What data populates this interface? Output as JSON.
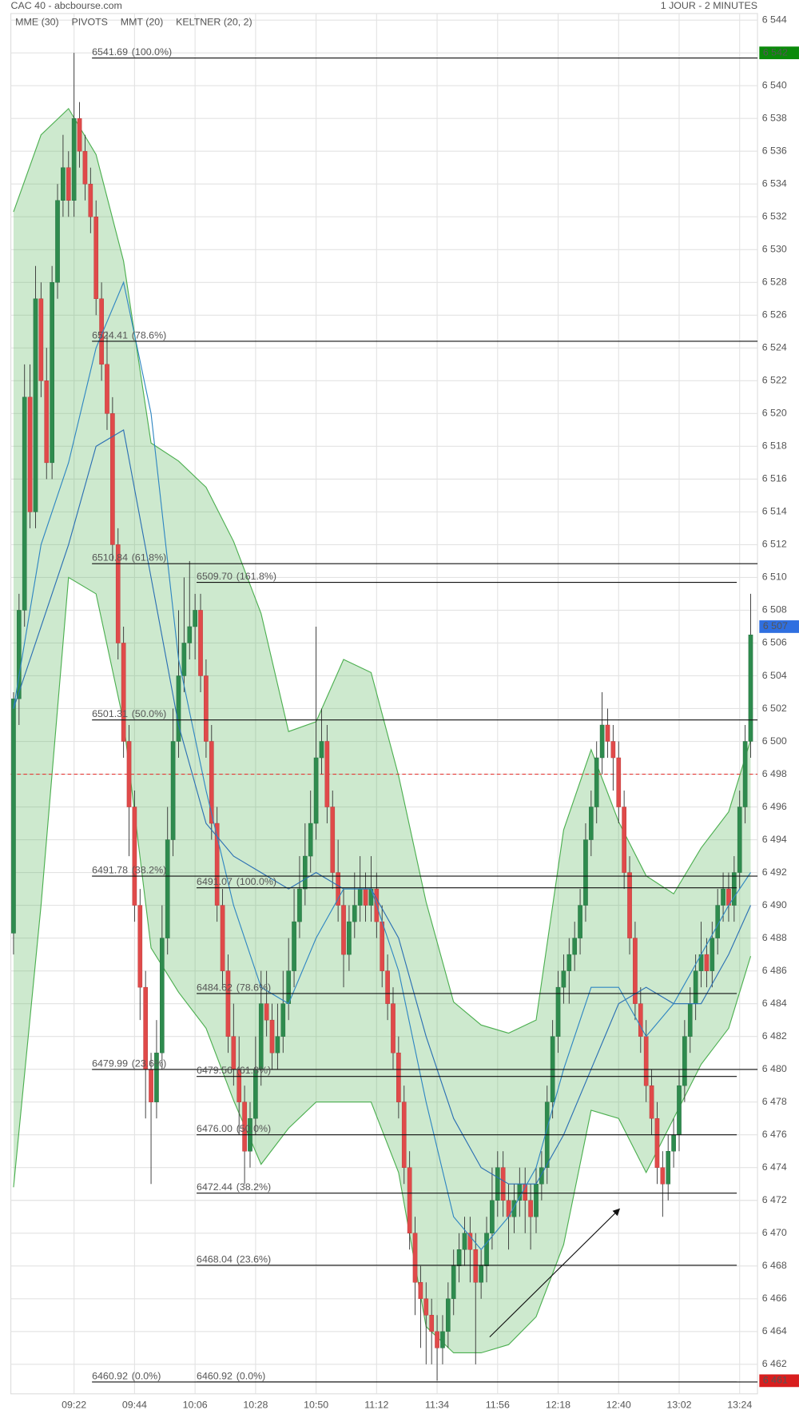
{
  "chart_data": {
    "type": "candlestick",
    "title": "CAC 40 - abcbourse.com",
    "subtitle": "1 JOUR - 2 MINUTES",
    "up_color": "#2e8b4e",
    "down_color": "#e04a4a",
    "grid": true,
    "ylim": [
      6460.2,
      6544.4
    ],
    "yticks": [
      {
        "value": 6462,
        "label": "6 462"
      },
      {
        "value": 6464,
        "label": "6 464"
      },
      {
        "value": 6466,
        "label": "6 466"
      },
      {
        "value": 6468,
        "label": "6 468"
      },
      {
        "value": 6470,
        "label": "6 470"
      },
      {
        "value": 6472,
        "label": "6 472"
      },
      {
        "value": 6474,
        "label": "6 474"
      },
      {
        "value": 6476,
        "label": "6 476"
      },
      {
        "value": 6478,
        "label": "6 478"
      },
      {
        "value": 6480,
        "label": "6 480"
      },
      {
        "value": 6482,
        "label": "6 482"
      },
      {
        "value": 6484,
        "label": "6 484"
      },
      {
        "value": 6486,
        "label": "6 486"
      },
      {
        "value": 6488,
        "label": "6 488"
      },
      {
        "value": 6490,
        "label": "6 490"
      },
      {
        "value": 6492,
        "label": "6 492"
      },
      {
        "value": 6494,
        "label": "6 494"
      },
      {
        "value": 6496,
        "label": "6 496"
      },
      {
        "value": 6498,
        "label": "6 498"
      },
      {
        "value": 6500,
        "label": "6 500"
      },
      {
        "value": 6502,
        "label": "6 502"
      },
      {
        "value": 6504,
        "label": "6 504"
      },
      {
        "value": 6506,
        "label": "6 506"
      },
      {
        "value": 6508,
        "label": "6 508"
      },
      {
        "value": 6510,
        "label": "6 510"
      },
      {
        "value": 6512,
        "label": "6 512"
      },
      {
        "value": 6514,
        "label": "6 514"
      },
      {
        "value": 6516,
        "label": "6 516"
      },
      {
        "value": 6518,
        "label": "6 518"
      },
      {
        "value": 6520,
        "label": "6 520"
      },
      {
        "value": 6522,
        "label": "6 522"
      },
      {
        "value": 6524,
        "label": "6 524"
      },
      {
        "value": 6526,
        "label": "6 526"
      },
      {
        "value": 6528,
        "label": "6 528"
      },
      {
        "value": 6530,
        "label": "6 530"
      },
      {
        "value": 6532,
        "label": "6 532"
      },
      {
        "value": 6534,
        "label": "6 534"
      },
      {
        "value": 6536,
        "label": "6 536"
      },
      {
        "value": 6538,
        "label": "6 538"
      },
      {
        "value": 6540,
        "label": "6 540"
      },
      {
        "value": 6542,
        "label": "6 542"
      },
      {
        "value": 6544,
        "label": "6 544"
      }
    ],
    "categories": [
      null,
      null,
      null,
      null,
      null,
      null,
      null,
      null,
      null,
      null,
      null,
      "09:22",
      null,
      null,
      null,
      null,
      null,
      null,
      null,
      null,
      null,
      null,
      "09:44",
      null,
      null,
      null,
      null,
      null,
      null,
      null,
      null,
      null,
      null,
      "10:06",
      null,
      null,
      null,
      null,
      null,
      null,
      null,
      null,
      null,
      null,
      "10:28",
      null,
      null,
      null,
      null,
      null,
      null,
      null,
      null,
      null,
      null,
      "10:50",
      null,
      null,
      null,
      null,
      null,
      null,
      null,
      null,
      null,
      null,
      "11:12",
      null,
      null,
      null,
      null,
      null,
      null,
      null,
      null,
      null,
      null,
      "11:34",
      null,
      null,
      null,
      null,
      null,
      null,
      null,
      null,
      null,
      null,
      "11:56",
      null,
      null,
      null,
      null,
      null,
      null,
      null,
      null,
      null,
      null,
      "12:18",
      null,
      null,
      null,
      null,
      null,
      null,
      null,
      null,
      null,
      null,
      "12:40",
      null,
      null,
      null,
      null,
      null,
      null,
      null,
      null,
      null,
      null,
      "13:02",
      null,
      null,
      null,
      null,
      null,
      null,
      null,
      null,
      null,
      null,
      "13:24",
      null,
      null
    ],
    "candles": [
      [
        6488.3,
        6503,
        6487,
        6502.6
      ],
      [
        6502.6,
        6509,
        6501,
        6508
      ],
      [
        6508,
        6523,
        6507,
        6521
      ],
      [
        6521,
        6523,
        6513,
        6514
      ],
      [
        6514,
        6529,
        6513,
        6527
      ],
      [
        6527,
        6528,
        6521,
        6522
      ],
      [
        6522,
        6524,
        6516,
        6517
      ],
      [
        6517,
        6529,
        6516,
        6528
      ],
      [
        6528,
        6534,
        6527,
        6533
      ],
      [
        6533,
        6537,
        6532,
        6535
      ],
      [
        6535,
        6536,
        6532,
        6533
      ],
      [
        6533,
        6542,
        6532,
        6538
      ],
      [
        6538,
        6539,
        6535,
        6536
      ],
      [
        6536,
        6537,
        6533,
        6534
      ],
      [
        6534,
        6535,
        6531,
        6532
      ],
      [
        6532,
        6533,
        6526,
        6527
      ],
      [
        6527,
        6528,
        6522,
        6523
      ],
      [
        6523,
        6525,
        6519,
        6520
      ],
      [
        6520,
        6521,
        6511,
        6512
      ],
      [
        6512,
        6513,
        6505,
        6506
      ],
      [
        6506,
        6507,
        6499,
        6500
      ],
      [
        6500,
        6501,
        6493,
        6496
      ],
      [
        6496,
        6497,
        6489,
        6490
      ],
      [
        6490,
        6491,
        6483,
        6485
      ],
      [
        6485,
        6486,
        6477,
        6480
      ],
      [
        6480,
        6481,
        6473,
        6478
      ],
      [
        6478,
        6483,
        6477,
        6481
      ],
      [
        6481,
        6490,
        6480,
        6488
      ],
      [
        6488,
        6496,
        6487,
        6494
      ],
      [
        6494,
        6502,
        6493,
        6500
      ],
      [
        6500,
        6508,
        6499,
        6504
      ],
      [
        6504,
        6510,
        6503,
        6506
      ],
      [
        6506,
        6511,
        6505,
        6507
      ],
      [
        6507,
        6509,
        6505,
        6508
      ],
      [
        6508,
        6509,
        6503,
        6504
      ],
      [
        6504,
        6505,
        6499,
        6500
      ],
      [
        6500,
        6501,
        6494,
        6495
      ],
      [
        6495,
        6496,
        6489,
        6490
      ],
      [
        6490,
        6491,
        6485,
        6486
      ],
      [
        6486,
        6487,
        6481,
        6482
      ],
      [
        6482,
        6484,
        6479,
        6480
      ],
      [
        6480,
        6482,
        6476,
        6478
      ],
      [
        6478,
        6479,
        6473,
        6475
      ],
      [
        6475,
        6478,
        6474,
        6477
      ],
      [
        6477,
        6482,
        6476,
        6480
      ],
      [
        6480,
        6486,
        6479,
        6484
      ],
      [
        6484,
        6486,
        6482,
        6483
      ],
      [
        6483,
        6484,
        6480,
        6481
      ],
      [
        6481,
        6484,
        6480,
        6482
      ],
      [
        6482,
        6486,
        6481,
        6484
      ],
      [
        6484,
        6488,
        6483,
        6486
      ],
      [
        6486,
        6491,
        6485,
        6489
      ],
      [
        6489,
        6493,
        6488,
        6491
      ],
      [
        6491,
        6495,
        6490,
        6493
      ],
      [
        6493,
        6497,
        6492,
        6495
      ],
      [
        6495,
        6507,
        6494,
        6499
      ],
      [
        6499,
        6502,
        6498,
        6500
      ],
      [
        6500,
        6501,
        6495,
        6496
      ],
      [
        6496,
        6497,
        6491,
        6492
      ],
      [
        6492,
        6494,
        6489,
        6490
      ],
      [
        6490,
        6491,
        6485,
        6487
      ],
      [
        6487,
        6490,
        6486,
        6489
      ],
      [
        6489,
        6492,
        6488,
        6490
      ],
      [
        6490,
        6493,
        6489,
        6491
      ],
      [
        6491,
        6492,
        6489,
        6490
      ],
      [
        6490,
        6493,
        6489,
        6491
      ],
      [
        6491,
        6492,
        6488,
        6489
      ],
      [
        6489,
        6490,
        6485,
        6486
      ],
      [
        6486,
        6487,
        6483,
        6484
      ],
      [
        6484,
        6485,
        6480,
        6481
      ],
      [
        6481,
        6482,
        6477,
        6478
      ],
      [
        6478,
        6479,
        6473,
        6474
      ],
      [
        6474,
        6475,
        6469,
        6470
      ],
      [
        6470,
        6471,
        6465,
        6467
      ],
      [
        6467,
        6468,
        6463,
        6466
      ],
      [
        6466,
        6467,
        6462,
        6465
      ],
      [
        6465,
        6466,
        6462,
        6464
      ],
      [
        6464,
        6465,
        6461,
        6463
      ],
      [
        6463,
        6465,
        6462,
        6464
      ],
      [
        6464,
        6467,
        6463,
        6466
      ],
      [
        6466,
        6469,
        6465,
        6468
      ],
      [
        6468,
        6470,
        6467,
        6469
      ],
      [
        6469,
        6471,
        6468,
        6470
      ],
      [
        6470,
        6471,
        6467,
        6469
      ],
      [
        6469,
        6470,
        6462,
        6467
      ],
      [
        6467,
        6469,
        6466,
        6468
      ],
      [
        6468,
        6471,
        6467,
        6470
      ],
      [
        6470,
        6474,
        6469,
        6472
      ],
      [
        6472,
        6475,
        6471,
        6474
      ],
      [
        6474,
        6475,
        6471,
        6472
      ],
      [
        6472,
        6473,
        6469,
        6471
      ],
      [
        6471,
        6473,
        6470,
        6472
      ],
      [
        6472,
        6474,
        6471,
        6473
      ],
      [
        6473,
        6474,
        6470,
        6472
      ],
      [
        6472,
        6473,
        6469,
        6471
      ],
      [
        6471,
        6474,
        6470,
        6473
      ],
      [
        6473,
        6475,
        6472,
        6474
      ],
      [
        6474,
        6479,
        6473,
        6478
      ],
      [
        6478,
        6483,
        6477,
        6482
      ],
      [
        6482,
        6486,
        6481,
        6485
      ],
      [
        6485,
        6487,
        6484,
        6486
      ],
      [
        6486,
        6488,
        6484,
        6487
      ],
      [
        6487,
        6489,
        6486,
        6488
      ],
      [
        6488,
        6491,
        6487,
        6490
      ],
      [
        6490,
        6495,
        6489,
        6494
      ],
      [
        6494,
        6497,
        6493,
        6496
      ],
      [
        6496,
        6500,
        6495,
        6499
      ],
      [
        6499,
        6503,
        6498,
        6501
      ],
      [
        6501,
        6502,
        6499,
        6500
      ],
      [
        6500,
        6501,
        6497,
        6499
      ],
      [
        6499,
        6500,
        6495,
        6496
      ],
      [
        6496,
        6497,
        6491,
        6492
      ],
      [
        6492,
        6493,
        6487,
        6488
      ],
      [
        6488,
        6489,
        6483,
        6484
      ],
      [
        6484,
        6485,
        6481,
        6482
      ],
      [
        6482,
        6483,
        6478,
        6479
      ],
      [
        6479,
        6480,
        6476,
        6477
      ],
      [
        6477,
        6478,
        6473,
        6474
      ],
      [
        6474,
        6475,
        6471,
        6473
      ],
      [
        6473,
        6476,
        6472,
        6475
      ],
      [
        6475,
        6477,
        6474,
        6476
      ],
      [
        6476,
        6480,
        6475,
        6479
      ],
      [
        6479,
        6483,
        6478,
        6482
      ],
      [
        6482,
        6485,
        6481,
        6484
      ],
      [
        6484,
        6487,
        6483,
        6486
      ],
      [
        6486,
        6489,
        6485,
        6487
      ],
      [
        6487,
        6488,
        6485,
        6486
      ],
      [
        6486,
        6489,
        6485,
        6488
      ],
      [
        6488,
        6491,
        6487,
        6490
      ],
      [
        6490,
        6492,
        6489,
        6491
      ],
      [
        6491,
        6492,
        6489,
        6490
      ],
      [
        6490,
        6493,
        6489,
        6492
      ],
      [
        6492,
        6497,
        6491,
        6496
      ],
      [
        6496,
        6501,
        6495,
        6500
      ],
      [
        6500,
        6509,
        6499,
        6506.5
      ]
    ],
    "overlays": {
      "x": [
        0,
        5,
        10,
        15,
        20,
        25,
        30,
        35,
        40,
        45,
        50,
        55,
        60,
        65,
        70,
        75,
        80,
        85,
        90,
        95,
        100,
        105,
        110,
        115,
        120,
        125,
        130,
        134
      ],
      "series": [
        {
          "name": "MME (30)",
          "color": "#2b6fb3",
          "values": [
            6502,
            6507,
            6512,
            6518,
            6519,
            6510,
            6501,
            6495,
            6493,
            6492,
            6491,
            6492,
            6491,
            6491,
            6488,
            6482,
            6477,
            6474,
            6473,
            6473,
            6476,
            6480,
            6484,
            6485,
            6484,
            6484,
            6487,
            6490
          ]
        },
        {
          "name": "MMT (20)",
          "color": "#2f86c2",
          "values": [
            6502,
            6512,
            6517,
            6524,
            6528,
            6520,
            6505,
            6497,
            6490,
            6485,
            6484,
            6488,
            6491,
            6491,
            6486,
            6478,
            6471,
            6469,
            6471,
            6474,
            6480,
            6485,
            6485,
            6482,
            6484,
            6487,
            6490,
            6492
          ]
        }
      ],
      "keltner": {
        "name": "KELTNER (20, 2)",
        "color": "#4caf50",
        "upper": [
          6532.3,
          6537,
          6538.6,
          6535.8,
          6529.3,
          6518.2,
          6517.1,
          6515.5,
          6512.2,
          6507.8,
          6500.6,
          6501.2,
          6505,
          6504.2,
          6497.9,
          6490.2,
          6484.1,
          6482.7,
          6482.2,
          6483,
          6494.6,
          6499.5,
          6495.1,
          6491.8,
          6490.7,
          6493.5,
          6495.7,
          6500.1
        ],
        "lower": [
          6472.8,
          6490,
          6510,
          6509,
          6501.2,
          6487.4,
          6484.7,
          6482.5,
          6478.1,
          6474.2,
          6476.4,
          6478,
          6478,
          6478,
          6473.7,
          6464.3,
          6462.7,
          6462.7,
          6463.2,
          6464.9,
          6469.3,
          6477.5,
          6477,
          6473.7,
          6477,
          6480.3,
          6482.5,
          6486.9
        ]
      }
    },
    "pivots": {
      "name": "PIVOTS",
      "color": "#555555"
    },
    "fib_sets": [
      {
        "levels": [
          6541.69,
          6524.41,
          6510.84,
          6501.31,
          6491.78,
          6479.99,
          6460.92
        ],
        "ratios": [
          "(100.0%)",
          "(78.6%)",
          "(61.8%)",
          "(50.0%)",
          "(38.2%)",
          "(23.6%)",
          "(0.0%)"
        ]
      },
      {
        "levels": [
          {
            "value": 6509.7,
            "label": "6509.70"
          },
          6491.07,
          6484.62,
          6479.56,
          {
            "value": 6476,
            "label": "6476.00"
          },
          6472.44,
          6468.04,
          6460.92
        ],
        "ratios": [
          "(161.8%)",
          "(100.0%)",
          "(78.6%)",
          "(61.8%)",
          "(50.0%)",
          "(38.2%)",
          "(23.6%)",
          "(0.0%)"
        ]
      }
    ],
    "reference_line": {
      "value": 6498,
      "color": "#e53935"
    },
    "price_badges": [
      {
        "value": 6542,
        "label": "6 542",
        "color": "#0a8a0a"
      },
      {
        "value": 6507,
        "label": "6 507",
        "color": "#2f6fe0"
      },
      {
        "value": 6461,
        "label": "6 461",
        "color": "#d81e1e"
      }
    ]
  }
}
